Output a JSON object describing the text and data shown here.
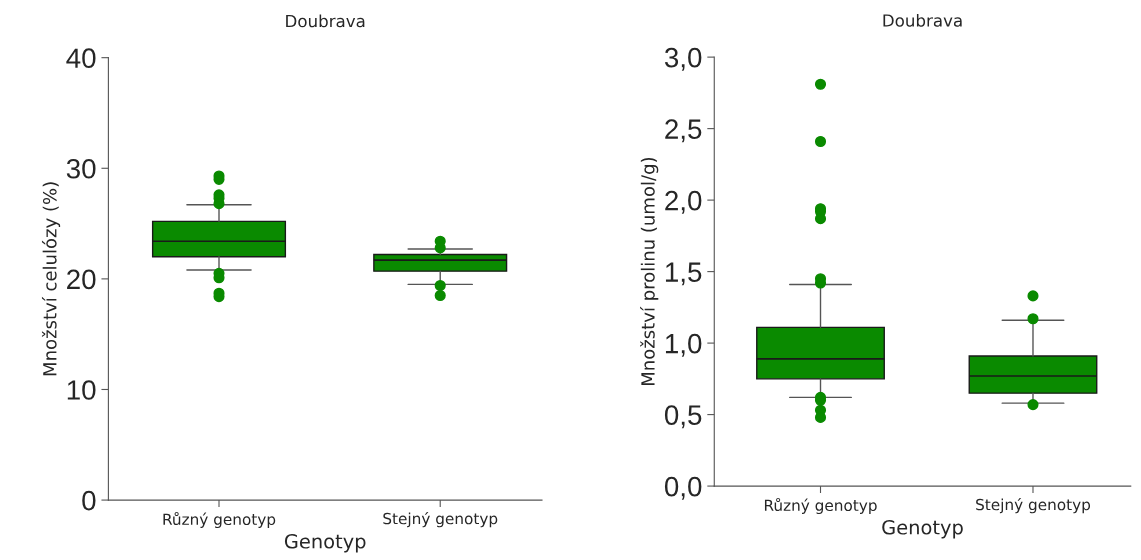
{
  "chart_data": [
    {
      "type": "box",
      "title": "Doubrava",
      "xlabel": "Genotyp",
      "ylabel": "Množství celulózy (%)",
      "categories": [
        "Různý genotyp",
        "Stejný genotyp"
      ],
      "series": [
        {
          "color": "#0a8a00",
          "boxes": [
            {
              "low": 20.8,
              "q1": 22.0,
              "median": 23.4,
              "q3": 25.2,
              "high": 26.7,
              "outliers": [
                29.3,
                29.0,
                27.6,
                27.3,
                26.8,
                20.5,
                20.1,
                18.7,
                18.4
              ]
            },
            {
              "low": 19.5,
              "q1": 20.7,
              "median": 21.7,
              "q3": 22.2,
              "high": 22.7,
              "outliers": [
                23.4,
                22.8,
                19.4,
                18.5
              ]
            }
          ]
        }
      ],
      "ylim": [
        0,
        40
      ],
      "yticks": [
        0,
        10,
        20,
        30,
        40
      ],
      "grid": false
    },
    {
      "type": "box",
      "title": "Doubrava",
      "xlabel": "Genotyp",
      "ylabel": "Množství prolinu (umol/g)",
      "categories": [
        "Různý genotyp",
        "Stejný genotyp"
      ],
      "series": [
        {
          "color": "#0a8a00",
          "boxes": [
            {
              "low": 0.62,
              "q1": 0.75,
              "median": 0.89,
              "q3": 1.11,
              "high": 1.41,
              "outliers": [
                2.81,
                2.41,
                1.94,
                1.92,
                1.87,
                1.45,
                1.42,
                0.62,
                0.6,
                0.53,
                0.48
              ]
            },
            {
              "low": 0.58,
              "q1": 0.65,
              "median": 0.77,
              "q3": 0.91,
              "high": 1.16,
              "outliers": [
                1.33,
                1.17,
                0.57
              ]
            }
          ]
        }
      ],
      "ylim": [
        0,
        3.0
      ],
      "yticks": [
        {
          "value": 0,
          "label": "0,0"
        },
        {
          "value": 0.5,
          "label": "0,5"
        },
        {
          "value": 1.0,
          "label": "1,0"
        },
        {
          "value": 1.5,
          "label": "1,5"
        },
        {
          "value": 2.0,
          "label": "2,0"
        },
        {
          "value": 2.5,
          "label": "2,5"
        },
        {
          "value": 3.0,
          "label": "3,0"
        }
      ],
      "grid": false
    }
  ]
}
